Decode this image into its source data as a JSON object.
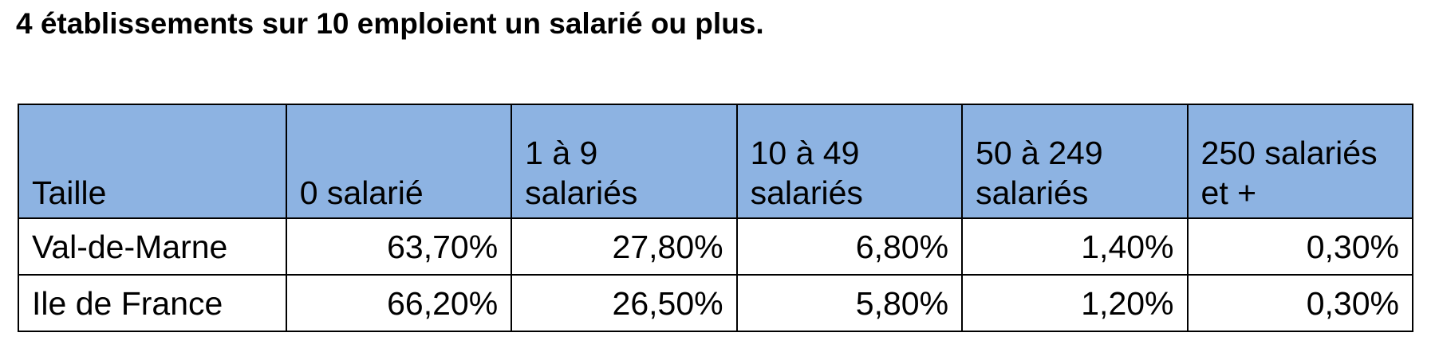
{
  "headline": "4 établissements sur 10 emploient un salarié ou plus.",
  "table": {
    "header_color": "#8db3e2",
    "header": {
      "label": "Taille",
      "columns": [
        {
          "line1": "0 salarié",
          "line2": ""
        },
        {
          "line1": "1 à 9",
          "line2": "salariés"
        },
        {
          "line1": "10 à 49",
          "line2": "salariés"
        },
        {
          "line1": "50 à 249",
          "line2": "salariés"
        },
        {
          "line1": "250 salariés",
          "line2": "et +"
        }
      ]
    },
    "rows": [
      {
        "label": "Val-de-Marne",
        "values": [
          "63,70%",
          "27,80%",
          "6,80%",
          "1,40%",
          "0,30%"
        ]
      },
      {
        "label": "Ile de France",
        "values": [
          "66,20%",
          "26,50%",
          "5,80%",
          "1,20%",
          "0,30%"
        ]
      }
    ]
  }
}
